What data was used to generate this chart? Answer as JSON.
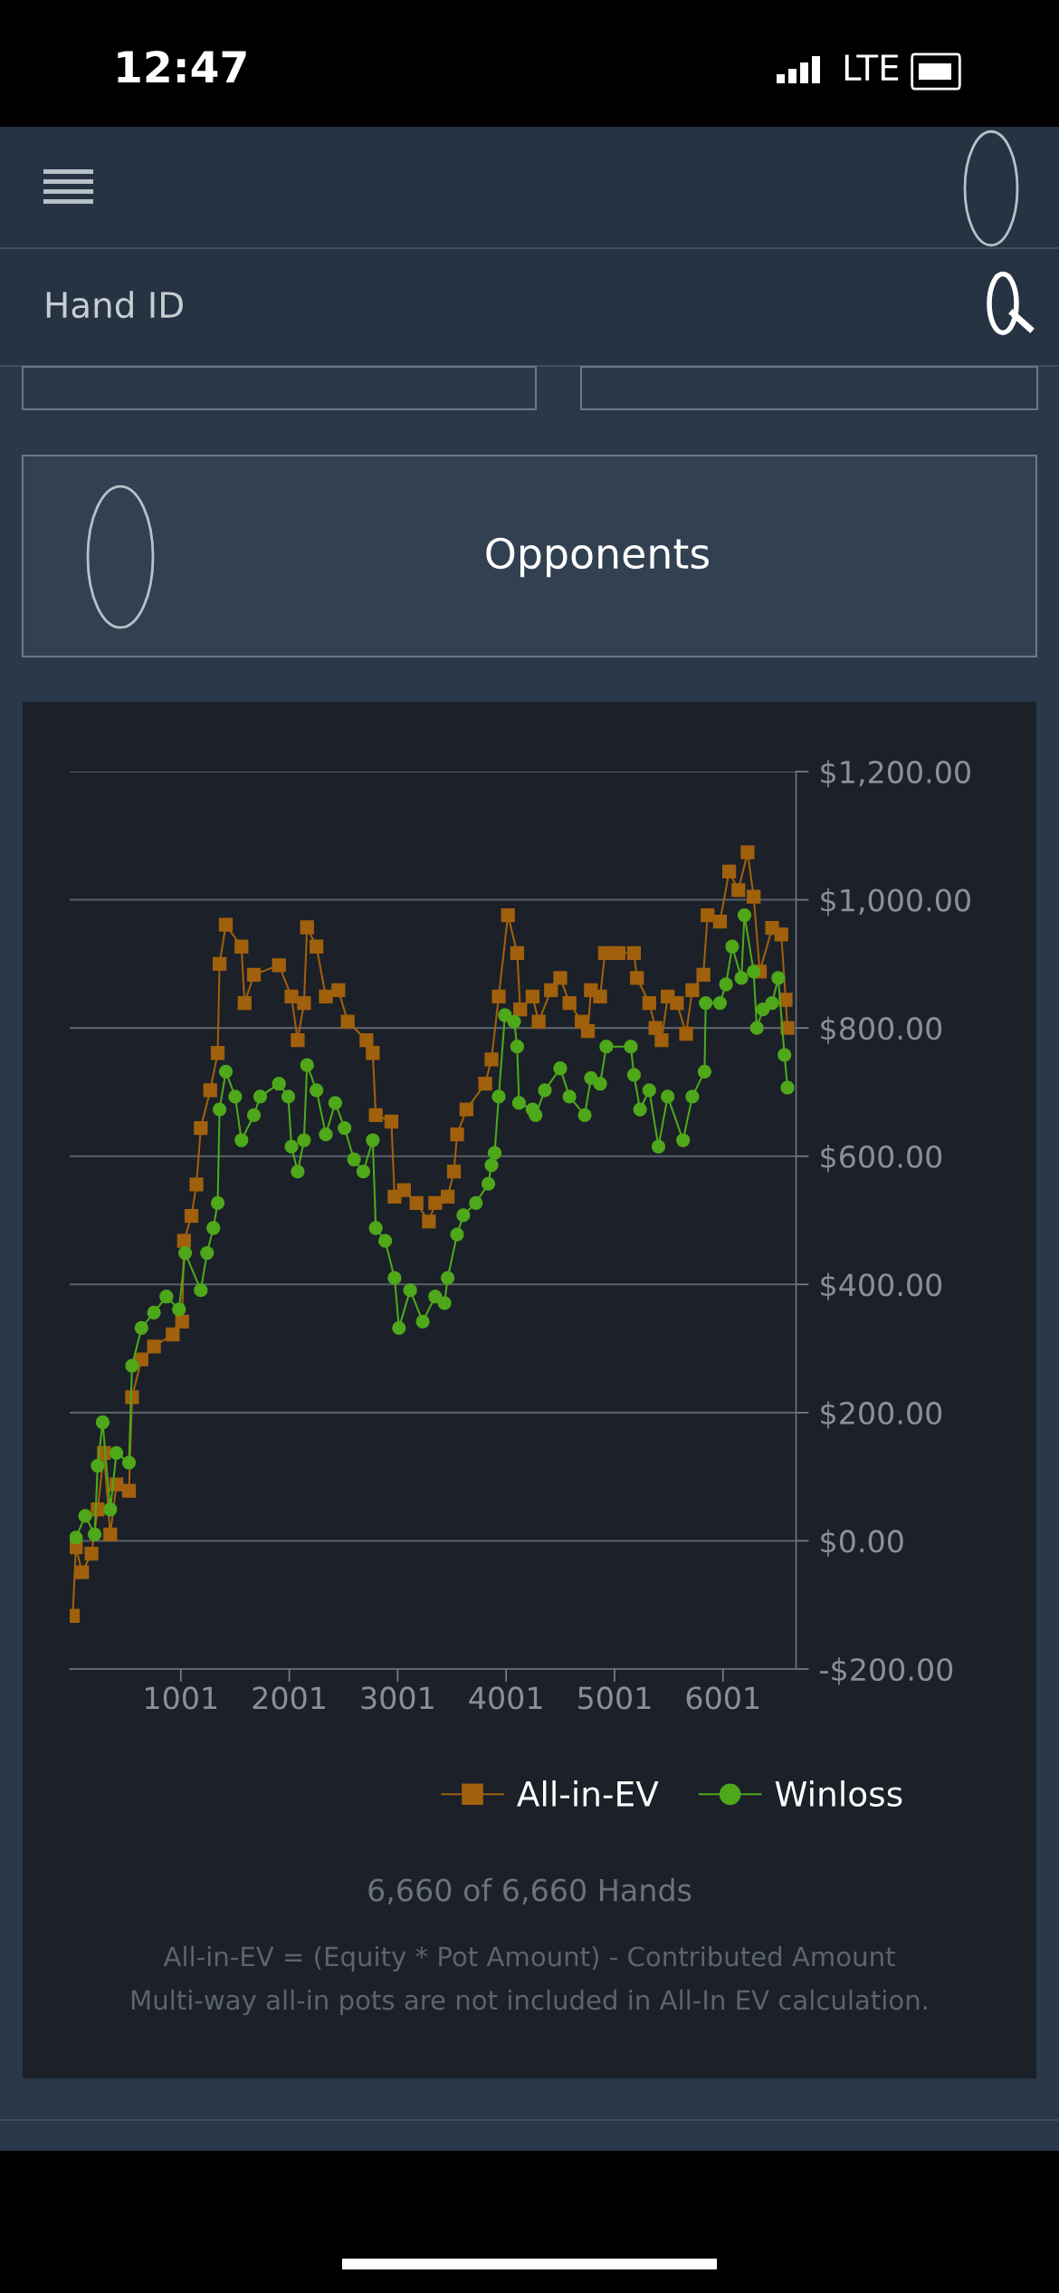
{
  "chart_data": {
    "type": "line",
    "xlim": [
      -24,
      6675
    ],
    "xticks": [
      1001,
      2001,
      3001,
      4001,
      5001,
      6001
    ],
    "ylim": [
      -200,
      1200
    ],
    "yticks": [
      {
        "value": -200,
        "label": "-$200.00"
      },
      {
        "value": 0,
        "label": "$0.00"
      },
      {
        "value": 200,
        "label": "$200.00"
      },
      {
        "value": 400,
        "label": "$400.00"
      },
      {
        "value": 600,
        "label": "$600.00"
      },
      {
        "value": 800,
        "label": "$800.00"
      },
      {
        "value": 1000,
        "label": "$1,000.00"
      },
      {
        "value": 1200,
        "label": "$1,200.00"
      }
    ],
    "grid": "y",
    "legend": "bottom right",
    "line_style": "solid",
    "series": [
      {
        "name": "All-in-EV",
        "color": "#a0600c",
        "marker": "square",
        "x": [
          4,
          33,
          90,
          177,
          234,
          292,
          350,
          407,
          523,
          551,
          638,
          753,
          926,
          1013,
          1030,
          1099,
          1145,
          1185,
          1272,
          1341,
          1358,
          1416,
          1560,
          1589,
          1675,
          1906,
          2021,
          2079,
          2137,
          2165,
          2252,
          2338,
          2454,
          2540,
          2713,
          2771,
          2799,
          2943,
          2972,
          3059,
          3174,
          3289,
          3347,
          3462,
          3520,
          3549,
          3635,
          3808,
          3866,
          3933,
          4018,
          4103,
          4131,
          4245,
          4301,
          4415,
          4500,
          4585,
          4698,
          4755,
          4783,
          4868,
          4913,
          5038,
          5180,
          5208,
          5321,
          5378,
          5435,
          5491,
          5576,
          5661,
          5718,
          5820,
          5859,
          5973,
          6058,
          6143,
          6228,
          6284,
          6341,
          6454,
          6539,
          6579,
          6596
        ],
        "values": [
          -117,
          -10,
          -49,
          -20,
          49,
          137,
          10,
          88,
          78,
          224,
          283,
          303,
          322,
          342,
          468,
          507,
          556,
          644,
          703,
          761,
          900,
          961,
          927,
          839,
          883,
          898,
          849,
          781,
          839,
          957,
          927,
          849,
          859,
          810,
          781,
          761,
          664,
          654,
          537,
          547,
          527,
          498,
          527,
          537,
          576,
          634,
          673,
          713,
          751,
          849,
          976,
          917,
          829,
          849,
          810,
          859,
          878,
          839,
          810,
          795,
          859,
          849,
          917,
          917,
          917,
          878,
          839,
          800,
          781,
          849,
          839,
          791,
          859,
          883,
          976,
          966,
          1044,
          1015,
          1074,
          1005,
          888,
          956,
          946,
          844,
          800
        ]
      },
      {
        "name": "Winloss",
        "color": "#4ea81a",
        "marker": "circle",
        "x": [
          33,
          119,
          206,
          234,
          280,
          350,
          407,
          523,
          551,
          638,
          753,
          868,
          984,
          1041,
          1185,
          1243,
          1301,
          1341,
          1358,
          1416,
          1502,
          1560,
          1675,
          1733,
          1906,
          1992,
          2021,
          2079,
          2137,
          2165,
          2252,
          2338,
          2425,
          2511,
          2598,
          2684,
          2771,
          2799,
          2886,
          2972,
          3013,
          3116,
          3232,
          3347,
          3433,
          3462,
          3549,
          3606,
          3722,
          3837,
          3866,
          3895,
          3933,
          3990,
          4075,
          4103,
          4120,
          4245,
          4273,
          4358,
          4500,
          4585,
          4726,
          4783,
          4868,
          4925,
          5151,
          5180,
          5236,
          5321,
          5406,
          5491,
          5633,
          5718,
          5831,
          5842,
          5973,
          6029,
          6086,
          6171,
          6199,
          6284,
          6313,
          6369,
          6454,
          6511,
          6568,
          6596
        ],
        "values": [
          5,
          39,
          10,
          117,
          185,
          49,
          137,
          122,
          273,
          332,
          356,
          381,
          361,
          449,
          391,
          449,
          488,
          527,
          673,
          732,
          693,
          625,
          664,
          693,
          713,
          693,
          615,
          576,
          625,
          742,
          703,
          634,
          683,
          644,
          595,
          576,
          625,
          488,
          468,
          410,
          332,
          391,
          342,
          381,
          371,
          410,
          478,
          508,
          527,
          557,
          586,
          605,
          693,
          820,
          810,
          771,
          683,
          673,
          664,
          703,
          737,
          693,
          664,
          722,
          713,
          771,
          771,
          727,
          673,
          703,
          615,
          693,
          625,
          693,
          732,
          839,
          839,
          868,
          927,
          878,
          976,
          888,
          800,
          829,
          839,
          878,
          758,
          707
        ]
      }
    ],
    "annotations": [
      "12:47",
      "LTE",
      "Hand ID",
      "Opponents",
      "6,660 of 6,660 Hands",
      "All-in-EV = (Equity * Pot Amount) - Contributed Amount",
      "Multi-way all-in pots are not included in All-In EV calculation."
    ]
  }
}
